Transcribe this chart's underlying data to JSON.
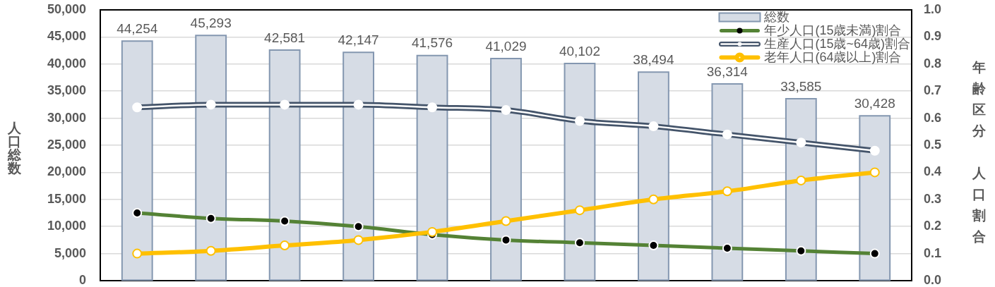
{
  "chart_data": {
    "type": "bar",
    "categories": [
      null,
      null,
      null,
      null,
      null,
      null,
      null,
      null,
      null,
      null,
      null
    ],
    "series": [
      {
        "name": "総数",
        "color": "#d6dce5",
        "values": [
          44254,
          45293,
          42581,
          42147,
          41576,
          41029,
          40102,
          38494,
          36314,
          33585,
          30428
        ],
        "value_labels": [
          "44,254",
          "45,293",
          "42,581",
          "42,147",
          "41,576",
          "41,029",
          "40,102",
          "38,494",
          "36,314",
          "33,585",
          "30,428"
        ]
      },
      {
        "name": "年少人口(15歳未満)割合",
        "type": "line",
        "axis": "y2",
        "color": "#548235",
        "values": [
          0.25,
          0.23,
          0.22,
          0.2,
          0.17,
          0.15,
          0.14,
          0.13,
          0.12,
          0.11,
          0.1
        ]
      },
      {
        "name": "生産人口(15歳~64歳)割合",
        "type": "line",
        "axis": "y2",
        "color": "#44546a",
        "values": [
          0.64,
          0.65,
          0.65,
          0.65,
          0.64,
          0.63,
          0.59,
          0.57,
          0.54,
          0.51,
          0.48
        ]
      },
      {
        "name": "老年人口(64歳以上)割合",
        "type": "line",
        "axis": "y2",
        "color": "#ffc000",
        "values": [
          0.1,
          0.11,
          0.13,
          0.15,
          0.18,
          0.22,
          0.26,
          0.3,
          0.33,
          0.37,
          0.4
        ]
      }
    ],
    "ylabel": "人口総数",
    "y2label": "年齢区分人口割合",
    "ylim": [
      0,
      50000
    ],
    "yticks": [
      0,
      {
        "value": 5000,
        "label": "5,000"
      },
      {
        "value": 10000,
        "label": "10,000"
      },
      {
        "value": 15000,
        "label": "15,000"
      },
      {
        "value": 20000,
        "label": "20,000"
      },
      {
        "value": 25000,
        "label": "25,000"
      },
      {
        "value": 30000,
        "label": "30,000"
      },
      {
        "value": 35000,
        "label": "35,000"
      },
      {
        "value": 40000,
        "label": "40,000"
      },
      {
        "value": 45000,
        "label": "45,000"
      },
      {
        "value": 50000,
        "label": "50,000"
      }
    ],
    "y2lim": [
      0,
      1
    ],
    "y2ticks": [
      {
        "value": 0,
        "label": "0.0"
      },
      0.1,
      0.2,
      0.3,
      0.4,
      0.5,
      0.6,
      0.7,
      0.8,
      0.9,
      {
        "value": 1,
        "label": "1.0"
      }
    ],
    "grid": "y",
    "legend": "top right",
    "marker": "circle"
  }
}
